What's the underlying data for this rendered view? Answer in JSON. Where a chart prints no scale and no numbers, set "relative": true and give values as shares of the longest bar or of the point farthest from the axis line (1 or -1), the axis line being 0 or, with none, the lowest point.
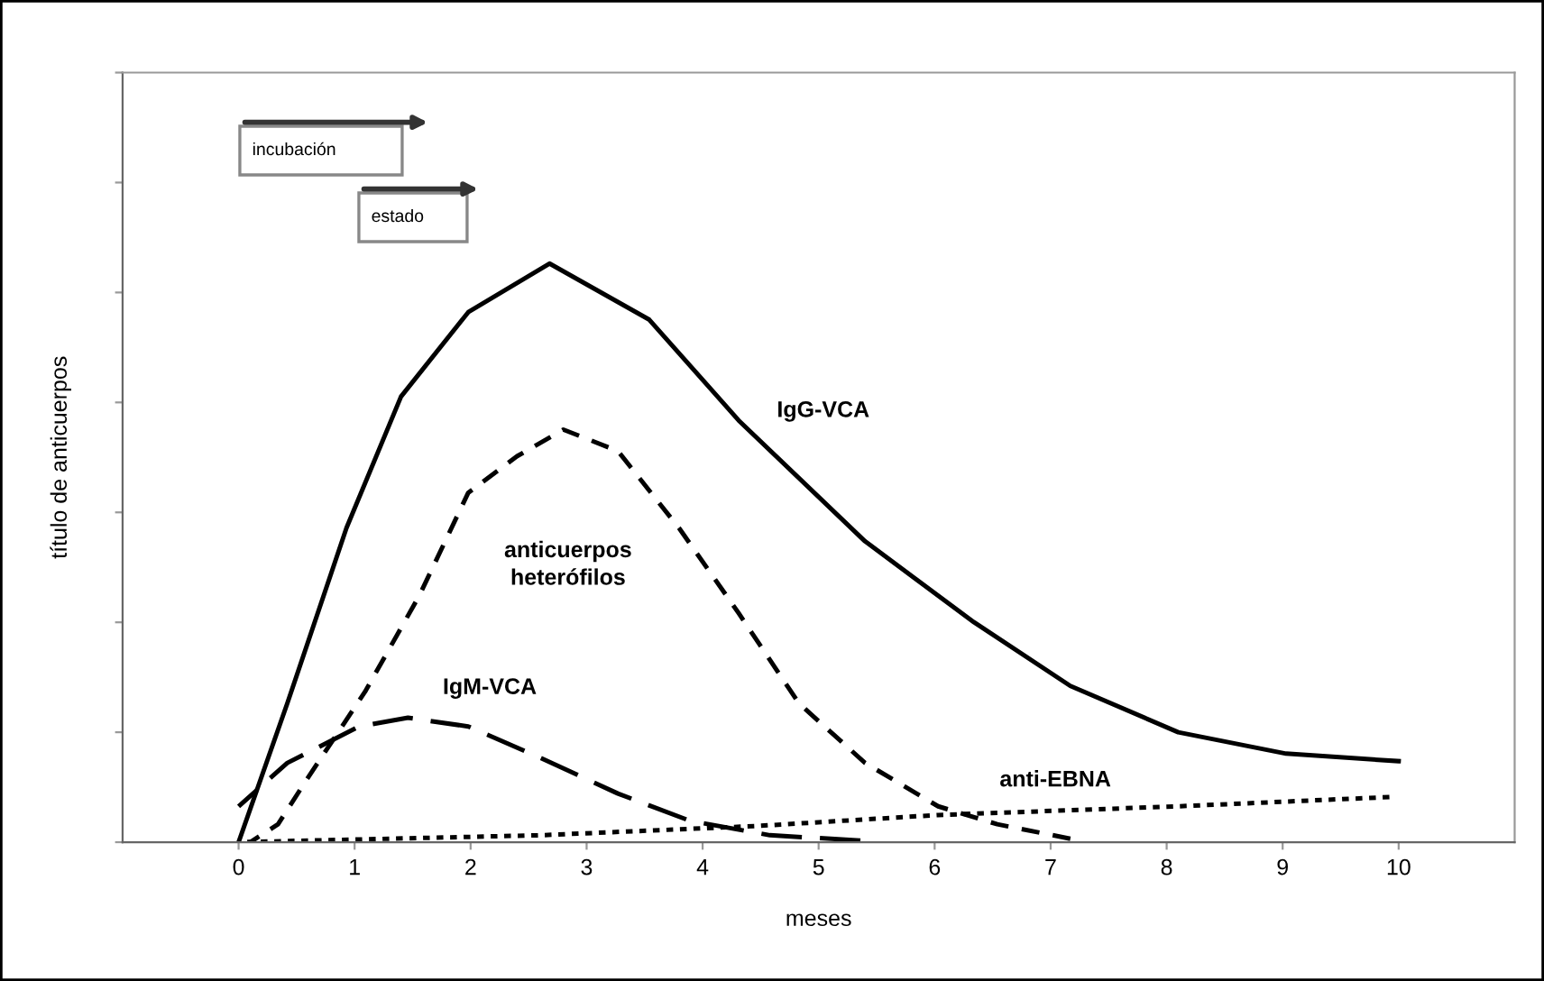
{
  "chart_data": {
    "type": "line",
    "relative": true,
    "xlabel": "meses",
    "ylabel": "título de anticuerpos",
    "xlim": [
      -1,
      11
    ],
    "xticks": [
      0,
      1,
      2,
      3,
      4,
      5,
      6,
      7,
      8,
      9,
      10
    ],
    "grid": false,
    "legend": false,
    "marker": "none",
    "annotations": [
      "incubación",
      "estado"
    ],
    "series": [
      {
        "name": "IgG-VCA",
        "color": "#000000",
        "line_style": "solid",
        "x": [
          0,
          0.42,
          0.93,
          1.4,
          1.98,
          2.68,
          3.54,
          4.31,
          5.4,
          6.34,
          7.17,
          8.1,
          9.03,
          10
        ],
        "values": [
          0,
          0.24,
          0.543,
          0.77,
          0.916,
          1.0,
          0.903,
          0.729,
          0.52,
          0.38,
          0.27,
          0.19,
          0.153,
          0.14
        ]
      },
      {
        "name": "anticuerpos\nheterófilos",
        "color": "#000000",
        "line_style": "dashed",
        "x": [
          0.1,
          0.34,
          0.58,
          1.09,
          1.56,
          1.98,
          2.4,
          2.8,
          3.27,
          3.8,
          4.31,
          4.83,
          5.4,
          6.03,
          6.54,
          7.17
        ],
        "values": [
          0,
          0.031,
          0.106,
          0.26,
          0.427,
          0.604,
          0.667,
          0.713,
          0.676,
          0.542,
          0.396,
          0.24,
          0.137,
          0.062,
          0.031,
          0.006
        ]
      },
      {
        "name": "IgM-VCA",
        "color": "#000000",
        "line_style": "longdash",
        "x": [
          0,
          0.42,
          1.04,
          1.46,
          1.98,
          2.6,
          3.27,
          3.89,
          4.58,
          5.36
        ],
        "values": [
          0.062,
          0.137,
          0.2,
          0.215,
          0.2,
          0.146,
          0.084,
          0.037,
          0.012,
          0.003
        ]
      },
      {
        "name": "anti-EBNA",
        "color": "#000000",
        "line_style": "dotted",
        "x": [
          0,
          2.6,
          4.47,
          6.03,
          8.1,
          9.92
        ],
        "values": [
          0,
          0.012,
          0.028,
          0.047,
          0.062,
          0.078
        ]
      }
    ]
  }
}
